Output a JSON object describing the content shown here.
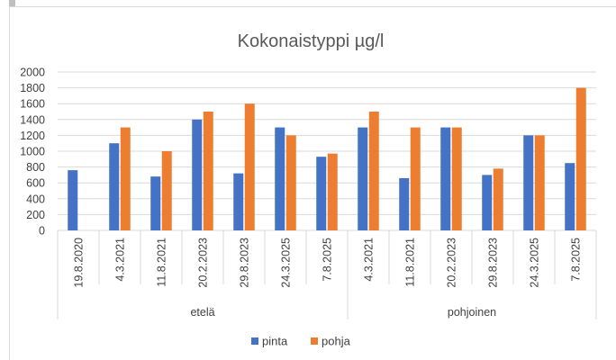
{
  "chart_data": {
    "type": "bar",
    "title": "Kokonaistyppi µg/l",
    "xlabel": "",
    "ylabel": "",
    "ylim": [
      0,
      2000
    ],
    "yticks": [
      0,
      200,
      400,
      600,
      800,
      1000,
      1200,
      1400,
      1600,
      1800,
      2000
    ],
    "grid": true,
    "legend_position": "bottom",
    "groups": [
      {
        "name": "etelä",
        "categories": [
          "19.8.2020",
          "4.3.2021",
          "11.8.2021",
          "20.2.2023",
          "29.8.2023",
          "24.3.2025",
          "7.8.2025"
        ]
      },
      {
        "name": "pohjoinen",
        "categories": [
          "4.3.2021",
          "11.8.2021",
          "20.2.2023",
          "29.8.2023",
          "24.3.2025",
          "7.8.2025"
        ]
      }
    ],
    "series": [
      {
        "name": "pinta",
        "color": "#4472c4",
        "values": [
          760,
          1100,
          680,
          1400,
          720,
          1300,
          930,
          1300,
          660,
          1300,
          700,
          1200,
          850
        ]
      },
      {
        "name": "pohja",
        "color": "#ed7d31",
        "values": [
          null,
          1300,
          1000,
          1500,
          1600,
          1200,
          970,
          1500,
          1300,
          1300,
          780,
          1200,
          1800
        ]
      }
    ]
  }
}
